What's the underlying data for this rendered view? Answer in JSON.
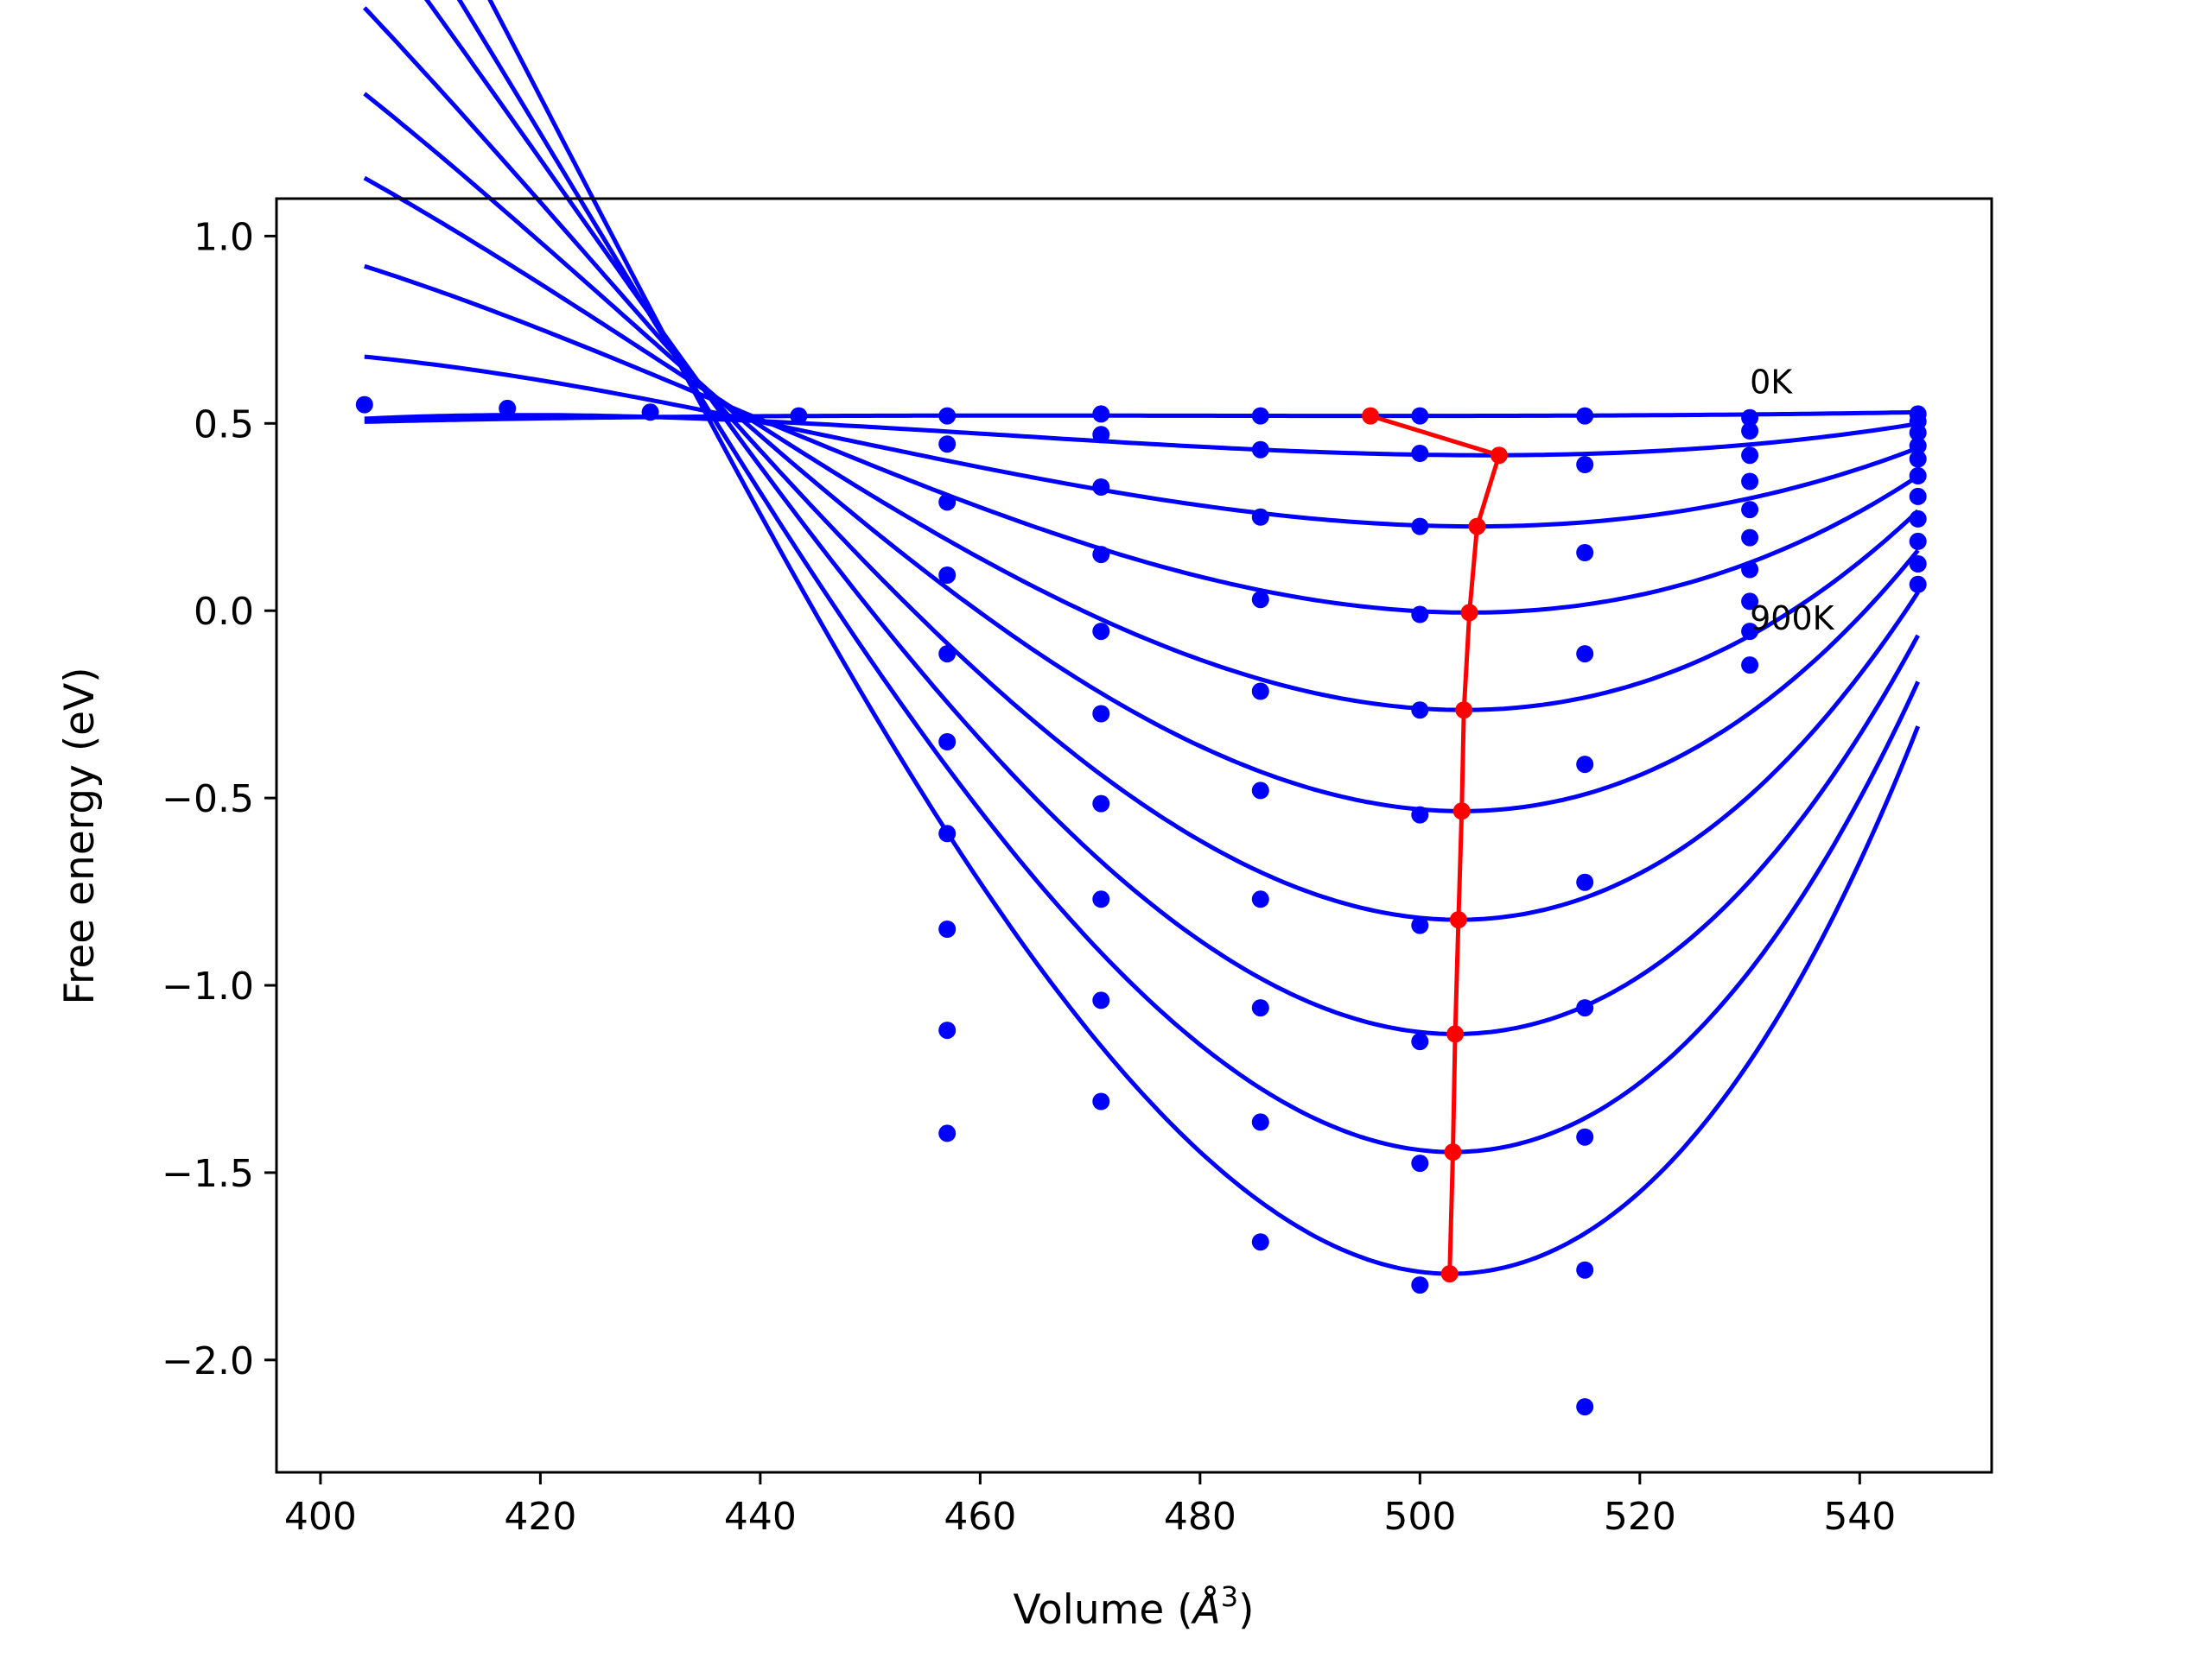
{
  "chart_data": {
    "type": "scatter",
    "title": "",
    "xlabel": "Volume (Å³)",
    "xlabel_base": "Volume (",
    "xlabel_unit": "Å",
    "xlabel_sup": "3",
    "xlabel_close": ")",
    "ylabel": "Free energy (eV)",
    "xlim": [
      396,
      552
    ],
    "ylim": [
      -2.3,
      1.1
    ],
    "xticks": [
      400,
      420,
      440,
      460,
      480,
      500,
      520,
      540
    ],
    "xtick_labels": [
      "400",
      "420",
      "440",
      "460",
      "480",
      "500",
      "520",
      "540"
    ],
    "yticks": [
      1.0,
      0.5,
      0.0,
      -0.5,
      -1.0,
      -1.5,
      -2.0
    ],
    "ytick_labels": [
      "1.0",
      "0.5",
      "0.0",
      "−0.5",
      "−1.0",
      "−1.5",
      "−2.0"
    ],
    "grid": false,
    "legend": "none",
    "colors": {
      "fits": "#0000ff",
      "points": "#0000ff",
      "minimum": "#ff0000"
    },
    "fit_x_range": [
      404,
      545.3
    ],
    "annotations": [
      {
        "text": "0K",
        "x": 530,
        "y": 0.58
      },
      {
        "text": "900K",
        "x": 530,
        "y": -0.05
      }
    ],
    "series": [
      {
        "fit": {
          "V0": 497.2,
          "E0": 0.52,
          "A": 2.2e-06,
          "B": 4.3e-08
        },
        "points": [
          [
            404,
            0.55
          ],
          [
            417,
            0.54
          ],
          [
            430,
            0.53
          ],
          [
            443.5,
            0.52
          ],
          [
            457,
            0.52
          ],
          [
            471,
            0.525
          ],
          [
            485.5,
            0.52
          ],
          [
            500,
            0.52
          ],
          [
            515,
            0.52
          ],
          [
            530,
            0.515
          ],
          [
            545.3,
            0.525
          ]
        ]
      },
      {
        "fit": {
          "V0": 506.0,
          "E0": 0.415,
          "A": 4.2e-05,
          "B": 3.2e-07
        },
        "points": [
          [
            457,
            0.445
          ],
          [
            471,
            0.47
          ],
          [
            485.5,
            0.43
          ],
          [
            500,
            0.42
          ],
          [
            515,
            0.39
          ],
          [
            530,
            0.48
          ],
          [
            545.3,
            0.505
          ]
        ]
      },
      {
        "fit": {
          "V0": 505.0,
          "E0": 0.225,
          "A": 0.000105,
          "B": 6e-07
        },
        "points": [
          [
            457,
            0.29
          ],
          [
            471,
            0.33
          ],
          [
            485.5,
            0.25
          ],
          [
            500,
            0.225
          ],
          [
            515,
            0.155
          ],
          [
            530,
            0.415
          ],
          [
            545.3,
            0.475
          ]
        ]
      },
      {
        "fit": {
          "V0": 504.5,
          "E0": -0.005,
          "A": 0.000182,
          "B": 9e-07
        },
        "points": [
          [
            457,
            0.095
          ],
          [
            471,
            0.15
          ],
          [
            485.5,
            0.03
          ],
          [
            500,
            -0.01
          ],
          [
            515,
            -0.115
          ],
          [
            530,
            0.345
          ],
          [
            545.3,
            0.44
          ]
        ]
      },
      {
        "fit": {
          "V0": 504.0,
          "E0": -0.265,
          "A": 0.000262,
          "B": 1.2e-06
        },
        "points": [
          [
            457,
            -0.115
          ],
          [
            471,
            -0.055
          ],
          [
            485.5,
            -0.215
          ],
          [
            500,
            -0.265
          ],
          [
            515,
            -0.41
          ],
          [
            530,
            0.27
          ],
          [
            545.3,
            0.405
          ]
        ]
      },
      {
        "fit": {
          "V0": 503.8,
          "E0": -0.535,
          "A": 0.000342,
          "B": 1.5e-06
        },
        "points": [
          [
            457,
            -0.35
          ],
          [
            471,
            -0.275
          ],
          [
            485.5,
            -0.48
          ],
          [
            500,
            -0.545
          ],
          [
            515,
            -0.725
          ],
          [
            530,
            0.195
          ],
          [
            545.3,
            0.36
          ]
        ]
      },
      {
        "fit": {
          "V0": 503.5,
          "E0": -0.825,
          "A": 0.000425,
          "B": 1.8e-06
        },
        "points": [
          [
            457,
            -0.595
          ],
          [
            471,
            -0.515
          ],
          [
            485.5,
            -0.77
          ],
          [
            500,
            -0.84
          ],
          [
            515,
            -1.06
          ],
          [
            530,
            0.11
          ],
          [
            545.3,
            0.305
          ]
        ]
      },
      {
        "fit": {
          "V0": 503.2,
          "E0": -1.13,
          "A": 0.000512,
          "B": 2.1e-06
        },
        "points": [
          [
            457,
            -0.85
          ],
          [
            471,
            -0.77
          ],
          [
            485.5,
            -1.06
          ],
          [
            500,
            -1.15
          ],
          [
            515,
            -1.405
          ],
          [
            530,
            0.025
          ],
          [
            545.3,
            0.245
          ]
        ]
      },
      {
        "fit": {
          "V0": 503.0,
          "E0": -1.445,
          "A": 0.000598,
          "B": 2.45e-06
        },
        "points": [
          [
            457,
            -1.12
          ],
          [
            471,
            -1.04
          ],
          [
            485.5,
            -1.365
          ],
          [
            500,
            -1.475
          ],
          [
            515,
            -1.76
          ],
          [
            530,
            -0.055
          ],
          [
            545.3,
            0.185
          ]
        ]
      },
      {
        "fit": {
          "V0": 502.8,
          "E0": -1.77,
          "A": 0.00069,
          "B": 2.8e-06
        },
        "points": [
          [
            457,
            -1.395
          ],
          [
            471,
            -1.31
          ],
          [
            485.5,
            -1.685
          ],
          [
            500,
            -1.8
          ],
          [
            515,
            -2.125
          ],
          [
            530,
            -0.145
          ],
          [
            545.3,
            0.125
          ]
        ]
      }
    ],
    "extra_points": [
      [
        545.3,
        0.07
      ]
    ],
    "minimum_curve": [
      [
        495.5,
        0.52
      ],
      [
        507.2,
        0.415
      ],
      [
        505.2,
        0.225
      ],
      [
        504.5,
        -0.005
      ],
      [
        504.0,
        -0.265
      ],
      [
        503.8,
        -0.535
      ],
      [
        503.5,
        -0.825
      ],
      [
        503.2,
        -1.13
      ],
      [
        503.0,
        -1.445
      ],
      [
        502.7,
        -1.77
      ]
    ]
  }
}
